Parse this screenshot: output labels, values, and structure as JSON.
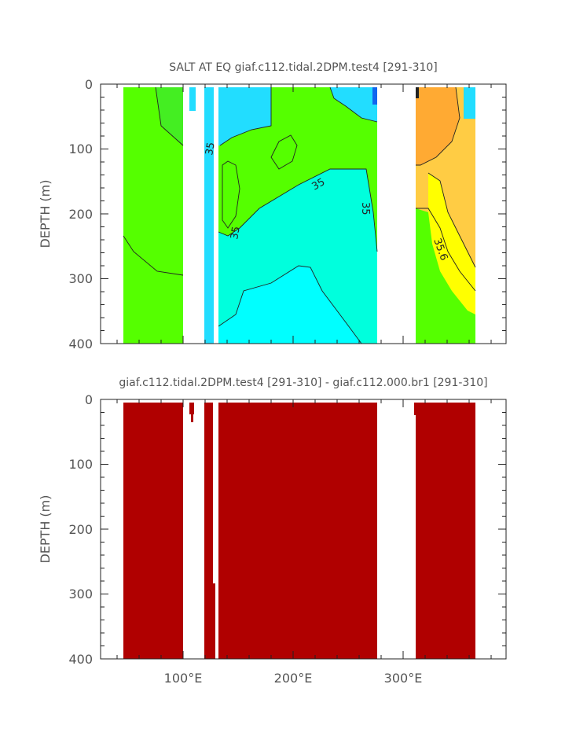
{
  "chart_data": [
    {
      "type": "heatmap",
      "title": "SALT AT EQ giaf.c112.tidal.2DPM.test4 [291-310]",
      "xlabel": "",
      "ylabel": "DEPTH (m)",
      "xlim": [
        30,
        390
      ],
      "ylim": [
        400,
        0
      ],
      "yticks": [
        "0",
        "100",
        "200",
        "300",
        "400"
      ],
      "contour_labels": [
        "35",
        "35",
        "35",
        "35",
        "35.6"
      ],
      "ocean_ranges_lon": [
        [
          44,
          98
        ],
        [
          118,
          128
        ],
        [
          130,
          277
        ],
        [
          313,
          368
        ]
      ],
      "land_gaps_lon": [
        [
          98,
          118
        ],
        [
          277,
          313
        ]
      ],
      "colors": {
        "green": "#55ff00",
        "mid_green": "#22ff66",
        "light_cyan": "#00ffdd",
        "cyan": "#00ffff",
        "blue_cyan": "#22ddff",
        "orange": "#ffaa33",
        "light_orange": "#ffcc44",
        "yellow": "#ffff00"
      }
    },
    {
      "type": "heatmap",
      "title": "giaf.c112.tidal.2DPM.test4 [291-310] - giaf.c112.000.br1 [291-310]",
      "xlabel": "",
      "ylabel": "DEPTH (m)",
      "xlim": [
        30,
        390
      ],
      "ylim": [
        400,
        0
      ],
      "yticks": [
        "0",
        "100",
        "200",
        "300",
        "400"
      ],
      "xticks": [
        "100°E",
        "200°E",
        "300°E"
      ],
      "fill_color": "#b00000"
    }
  ]
}
